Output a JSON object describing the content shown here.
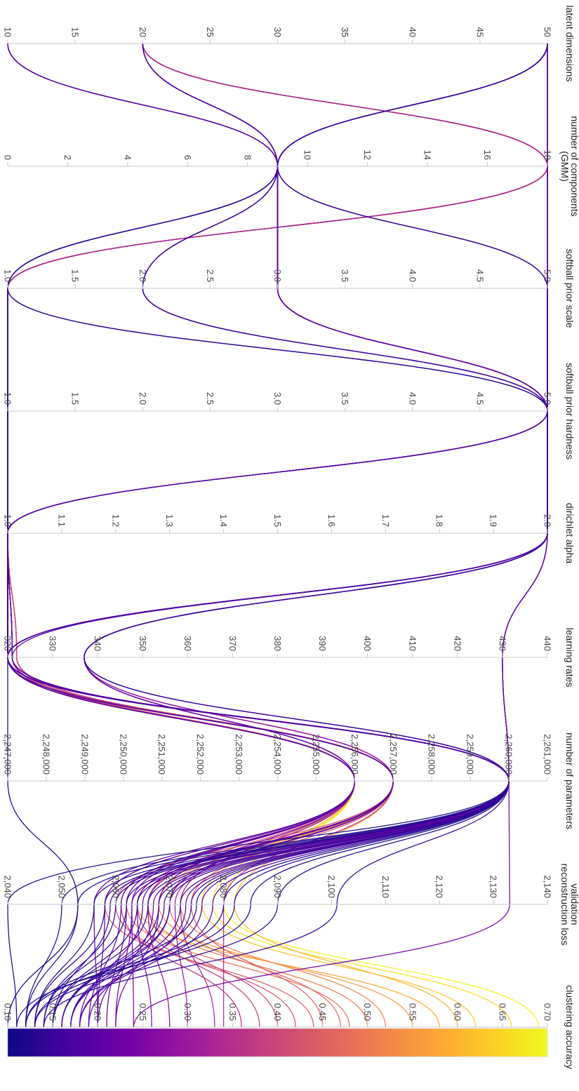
{
  "chart_data": {
    "type": "parallel_coordinates",
    "orientation": "rotated-90-clockwise",
    "color_by": "clustering accuracy",
    "colorscale": [
      "#0d0887",
      "#46039f",
      "#7201a8",
      "#9c179e",
      "#bd3786",
      "#d8576b",
      "#ed7953",
      "#fb9f3a",
      "#fdca26",
      "#f0f921"
    ],
    "dimensions": [
      {
        "name": "latent dimensions",
        "range": [
          10,
          50
        ],
        "ticks": [
          "10",
          "15",
          "20",
          "25",
          "30",
          "35",
          "40",
          "45",
          "50"
        ],
        "tick_values": [
          10,
          15,
          20,
          25,
          30,
          35,
          40,
          45,
          50
        ]
      },
      {
        "name": "number of components (GMM)",
        "range": [
          0,
          18
        ],
        "ticks": [
          "0",
          "2",
          "4",
          "6",
          "8",
          "10",
          "12",
          "14",
          "16",
          "18"
        ],
        "tick_values": [
          0,
          2,
          4,
          6,
          8,
          10,
          12,
          14,
          16,
          18
        ]
      },
      {
        "name": "softball prior scale",
        "range": [
          1,
          5
        ],
        "ticks": [
          "1.0",
          "1.5",
          "2.0",
          "2.5",
          "3.0",
          "3.5",
          "4.0",
          "4.5",
          "5.0"
        ],
        "tick_values": [
          1,
          1.5,
          2,
          2.5,
          3,
          3.5,
          4,
          4.5,
          5
        ]
      },
      {
        "name": "softball prior hardness",
        "range": [
          1,
          5
        ],
        "ticks": [
          "1.0",
          "1.5",
          "2.0",
          "2.5",
          "3.0",
          "3.5",
          "4.0",
          "4.5",
          "5.0"
        ],
        "tick_values": [
          1,
          1.5,
          2,
          2.5,
          3,
          3.5,
          4,
          4.5,
          5
        ]
      },
      {
        "name": "dirichlet alpha",
        "range": [
          1,
          2
        ],
        "ticks": [
          "1.0",
          "1.1",
          "1.2",
          "1.3",
          "1.4",
          "1.5",
          "1.6",
          "1.7",
          "1.8",
          "1.9",
          "2.0"
        ],
        "tick_values": [
          1,
          1.1,
          1.2,
          1.3,
          1.4,
          1.5,
          1.6,
          1.7,
          1.8,
          1.9,
          2
        ]
      },
      {
        "name": "learning rates",
        "range": [
          320,
          440
        ],
        "ticks": [
          "320",
          "330",
          "340",
          "350",
          "360",
          "370",
          "380",
          "390",
          "400",
          "410",
          "420",
          "430",
          "440"
        ],
        "tick_values": [
          320,
          330,
          340,
          350,
          360,
          370,
          380,
          390,
          400,
          410,
          420,
          430,
          440
        ]
      },
      {
        "name": "number of parameters",
        "range": [
          2247000,
          2261000
        ],
        "ticks": [
          "2,247,000",
          "2,248,000",
          "2,249,000",
          "2,250,000",
          "2,251,000",
          "2,252,000",
          "2,253,000",
          "2,254,000",
          "2,255,000",
          "2,256,000",
          "2,257,000",
          "2,258,000",
          "2,259,000",
          "2,260,000",
          "2,261,000"
        ],
        "tick_values": [
          2247000,
          2248000,
          2249000,
          2250000,
          2251000,
          2252000,
          2253000,
          2254000,
          2255000,
          2256000,
          2257000,
          2258000,
          2259000,
          2260000,
          2261000
        ]
      },
      {
        "name": "validation reconstruction loss",
        "range": [
          2040,
          2140
        ],
        "ticks": [
          "2,040",
          "2,050",
          "2,060",
          "2,070",
          "2,080",
          "2,090",
          "2,100",
          "2,110",
          "2,120",
          "2,130",
          "2,140"
        ],
        "tick_values": [
          2040,
          2050,
          2060,
          2070,
          2080,
          2090,
          2100,
          2110,
          2120,
          2130,
          2140
        ]
      },
      {
        "name": "clustering accuracy",
        "range": [
          0.1,
          0.7
        ],
        "ticks": [
          "0.10",
          "0.15",
          "0.20",
          "0.25",
          "0.30",
          "0.35",
          "0.40",
          "0.45",
          "0.50",
          "0.55",
          "0.60",
          "0.65",
          "0.70"
        ],
        "tick_values": [
          0.1,
          0.15,
          0.2,
          0.25,
          0.3,
          0.35,
          0.4,
          0.45,
          0.5,
          0.55,
          0.6,
          0.65,
          0.7
        ]
      }
    ],
    "series": [
      {
        "values": [
          20,
          18,
          1,
          1,
          1,
          320,
          2256000,
          2076,
          0.62
        ]
      },
      {
        "values": [
          20,
          18,
          1,
          1,
          1,
          320,
          2256000,
          2078,
          0.66
        ]
      },
      {
        "values": [
          20,
          18,
          1,
          1,
          1,
          320,
          2256000,
          2080,
          0.69
        ]
      },
      {
        "values": [
          20,
          18,
          1,
          1,
          1,
          320,
          2257000,
          2082,
          0.6
        ]
      },
      {
        "values": [
          20,
          18,
          1,
          1,
          1,
          320,
          2257000,
          2064,
          0.58
        ]
      },
      {
        "values": [
          20,
          18,
          1,
          1,
          1,
          320,
          2257000,
          2068,
          0.55
        ]
      },
      {
        "values": [
          20,
          18,
          1,
          1,
          1,
          322,
          2256000,
          2072,
          0.52
        ]
      },
      {
        "values": [
          20,
          18,
          1,
          1,
          1,
          322,
          2257000,
          2066,
          0.5
        ]
      },
      {
        "values": [
          20,
          18,
          1,
          1,
          1,
          322,
          2256000,
          2070,
          0.47
        ]
      },
      {
        "values": [
          20,
          18,
          1,
          1,
          1,
          322,
          2257000,
          2074,
          0.45
        ]
      },
      {
        "values": [
          20,
          18,
          1,
          1,
          1,
          320,
          2256000,
          2062,
          0.48
        ]
      },
      {
        "values": [
          20,
          18,
          1,
          1,
          1,
          320,
          2257000,
          2060,
          0.42
        ]
      },
      {
        "values": [
          20,
          18,
          1,
          1,
          1,
          320,
          2256000,
          2058,
          0.44
        ]
      },
      {
        "values": [
          20,
          18,
          1,
          1,
          1,
          320,
          2256000,
          2066,
          0.4
        ]
      },
      {
        "values": [
          20,
          18,
          1,
          1,
          1,
          322,
          2257000,
          2064,
          0.38
        ]
      },
      {
        "values": [
          20,
          18,
          1,
          1,
          1,
          320,
          2256000,
          2061,
          0.36
        ]
      },
      {
        "values": [
          20,
          18,
          1,
          1,
          1,
          320,
          2247000,
          2053,
          0.1
        ]
      },
      {
        "values": [
          20,
          18,
          1,
          1,
          1,
          321,
          2256000,
          2072,
          0.33
        ]
      },
      {
        "values": [
          20,
          18,
          1,
          1,
          1,
          321,
          2257000,
          2080,
          0.34
        ]
      },
      {
        "values": [
          50,
          18,
          5,
          5,
          2,
          337,
          2257000,
          2066,
          0.28
        ]
      },
      {
        "values": [
          50,
          18,
          5,
          5,
          2,
          337,
          2257000,
          2064,
          0.26
        ]
      },
      {
        "values": [
          50,
          18,
          5,
          5,
          2,
          337,
          2257000,
          2071,
          0.3
        ]
      },
      {
        "values": [
          50,
          18,
          5,
          5,
          2,
          337,
          2256000,
          2063,
          0.24
        ]
      },
      {
        "values": [
          50,
          18,
          5,
          5,
          2,
          337,
          2256000,
          2068,
          0.22
        ]
      },
      {
        "values": [
          50,
          18,
          5,
          5,
          2,
          337,
          2256000,
          2062,
          0.21
        ]
      },
      {
        "values": [
          10,
          9,
          3,
          5,
          2,
          320,
          2256000,
          2058,
          0.2
        ]
      },
      {
        "values": [
          10,
          9,
          3,
          5,
          2,
          320,
          2256000,
          2061,
          0.19
        ]
      },
      {
        "values": [
          10,
          9,
          3,
          5,
          2,
          320,
          2257000,
          2065,
          0.18
        ]
      },
      {
        "values": [
          10,
          9,
          3,
          5,
          2,
          320,
          2257000,
          2070,
          0.17
        ]
      },
      {
        "values": [
          10,
          9,
          3,
          5,
          2,
          320,
          2256000,
          2056,
          0.2
        ]
      },
      {
        "values": [
          50,
          9,
          1,
          1,
          1,
          320,
          2260000,
          2040,
          0.11
        ]
      },
      {
        "values": [
          50,
          9,
          1,
          1,
          1,
          320,
          2260000,
          2050,
          0.12
        ]
      },
      {
        "values": [
          50,
          9,
          1,
          1,
          1,
          320,
          2260000,
          2053,
          0.12
        ]
      },
      {
        "values": [
          50,
          9,
          1,
          5,
          1,
          320,
          2260000,
          2056,
          0.13
        ]
      },
      {
        "values": [
          50,
          9,
          1,
          5,
          1,
          320,
          2260000,
          2058,
          0.13
        ]
      },
      {
        "values": [
          50,
          9,
          1,
          5,
          1,
          320,
          2260000,
          2060,
          0.14
        ]
      },
      {
        "values": [
          50,
          9,
          2,
          5,
          2,
          320,
          2260000,
          2062,
          0.14
        ]
      },
      {
        "values": [
          50,
          9,
          2,
          5,
          2,
          320,
          2260000,
          2064,
          0.15
        ]
      },
      {
        "values": [
          50,
          9,
          2,
          5,
          2,
          320,
          2260000,
          2066,
          0.15
        ]
      },
      {
        "values": [
          50,
          9,
          2,
          5,
          2,
          320,
          2260000,
          2068,
          0.16
        ]
      },
      {
        "values": [
          20,
          9,
          3,
          5,
          2,
          320,
          2260000,
          2070,
          0.16
        ]
      },
      {
        "values": [
          20,
          9,
          3,
          5,
          2,
          320,
          2260000,
          2072,
          0.17
        ]
      },
      {
        "values": [
          20,
          9,
          3,
          5,
          2,
          320,
          2260000,
          2074,
          0.17
        ]
      },
      {
        "values": [
          20,
          9,
          3,
          5,
          2,
          320,
          2260000,
          2076,
          0.18
        ]
      },
      {
        "values": [
          20,
          9,
          3,
          5,
          2,
          321,
          2260000,
          2078,
          0.18
        ]
      },
      {
        "values": [
          50,
          9,
          3,
          5,
          1,
          321,
          2260000,
          2080,
          0.12
        ]
      },
      {
        "values": [
          50,
          9,
          3,
          5,
          1,
          321,
          2260000,
          2082,
          0.13
        ]
      },
      {
        "values": [
          50,
          9,
          3,
          5,
          1,
          321,
          2260000,
          2063,
          0.22
        ]
      },
      {
        "values": [
          50,
          9,
          3,
          5,
          1,
          321,
          2260000,
          2067,
          0.2
        ]
      },
      {
        "values": [
          50,
          9,
          3,
          5,
          1,
          321,
          2260000,
          2073,
          0.19
        ]
      },
      {
        "values": [
          50,
          9,
          3,
          5,
          2,
          430,
          2260000,
          2085,
          0.11
        ]
      },
      {
        "values": [
          50,
          9,
          3,
          5,
          2,
          430,
          2260000,
          2075,
          0.12
        ]
      },
      {
        "values": [
          50,
          9,
          3,
          5,
          2,
          430,
          2260000,
          2090,
          0.13
        ]
      },
      {
        "values": [
          50,
          9,
          3,
          5,
          2,
          430,
          2260000,
          2133,
          0.24
        ]
      },
      {
        "values": [
          50,
          9,
          5,
          5,
          2,
          337,
          2260000,
          2101,
          0.14
        ]
      },
      {
        "values": [
          50,
          9,
          5,
          5,
          2,
          337,
          2260000,
          2069,
          0.16
        ]
      },
      {
        "values": [
          50,
          9,
          5,
          5,
          2,
          337,
          2260000,
          2059,
          0.15
        ]
      }
    ]
  }
}
